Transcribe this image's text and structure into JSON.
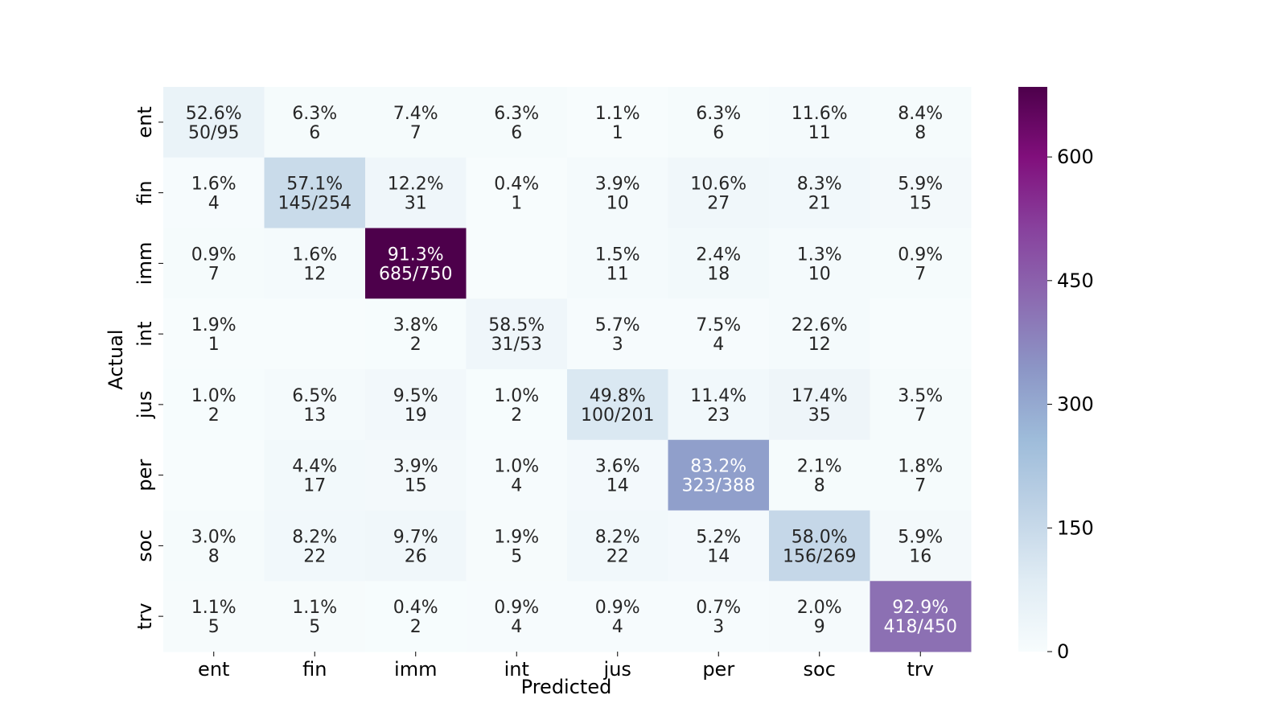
{
  "chart_data": {
    "type": "heatmap",
    "title": "",
    "xlabel": "Predicted",
    "ylabel": "Actual",
    "x_categories": [
      "ent",
      "fin",
      "imm",
      "int",
      "jus",
      "per",
      "soc",
      "trv"
    ],
    "y_categories": [
      "ent",
      "fin",
      "imm",
      "int",
      "jus",
      "per",
      "soc",
      "trv"
    ],
    "colormap": "BuPu",
    "color_range": [
      0,
      685
    ],
    "colorbar_ticks": [
      0,
      150,
      300,
      450,
      600
    ],
    "values": [
      [
        50,
        6,
        7,
        6,
        1,
        6,
        11,
        8
      ],
      [
        4,
        145,
        31,
        1,
        10,
        27,
        21,
        15
      ],
      [
        7,
        12,
        685,
        0,
        11,
        18,
        10,
        7
      ],
      [
        1,
        0,
        2,
        31,
        3,
        4,
        12,
        0
      ],
      [
        2,
        13,
        19,
        2,
        100,
        23,
        35,
        7
      ],
      [
        0,
        17,
        15,
        4,
        14,
        323,
        8,
        7
      ],
      [
        8,
        22,
        26,
        5,
        22,
        14,
        156,
        16
      ],
      [
        5,
        5,
        2,
        4,
        4,
        3,
        9,
        418
      ]
    ],
    "annotations": [
      [
        [
          "52.6%",
          "50/95"
        ],
        [
          "6.3%",
          "6"
        ],
        [
          "7.4%",
          "7"
        ],
        [
          "6.3%",
          "6"
        ],
        [
          "1.1%",
          "1"
        ],
        [
          "6.3%",
          "6"
        ],
        [
          "11.6%",
          "11"
        ],
        [
          "8.4%",
          "8"
        ]
      ],
      [
        [
          "1.6%",
          "4"
        ],
        [
          "57.1%",
          "145/254"
        ],
        [
          "12.2%",
          "31"
        ],
        [
          "0.4%",
          "1"
        ],
        [
          "3.9%",
          "10"
        ],
        [
          "10.6%",
          "27"
        ],
        [
          "8.3%",
          "21"
        ],
        [
          "5.9%",
          "15"
        ]
      ],
      [
        [
          "0.9%",
          "7"
        ],
        [
          "1.6%",
          "12"
        ],
        [
          "91.3%",
          "685/750"
        ],
        [
          "",
          ""
        ],
        [
          "1.5%",
          "11"
        ],
        [
          "2.4%",
          "18"
        ],
        [
          "1.3%",
          "10"
        ],
        [
          "0.9%",
          "7"
        ]
      ],
      [
        [
          "1.9%",
          "1"
        ],
        [
          "",
          ""
        ],
        [
          "3.8%",
          "2"
        ],
        [
          "58.5%",
          "31/53"
        ],
        [
          "5.7%",
          "3"
        ],
        [
          "7.5%",
          "4"
        ],
        [
          "22.6%",
          "12"
        ],
        [
          "",
          ""
        ]
      ],
      [
        [
          "1.0%",
          "2"
        ],
        [
          "6.5%",
          "13"
        ],
        [
          "9.5%",
          "19"
        ],
        [
          "1.0%",
          "2"
        ],
        [
          "49.8%",
          "100/201"
        ],
        [
          "11.4%",
          "23"
        ],
        [
          "17.4%",
          "35"
        ],
        [
          "3.5%",
          "7"
        ]
      ],
      [
        [
          "",
          ""
        ],
        [
          "4.4%",
          "17"
        ],
        [
          "3.9%",
          "15"
        ],
        [
          "1.0%",
          "4"
        ],
        [
          "3.6%",
          "14"
        ],
        [
          "83.2%",
          "323/388"
        ],
        [
          "2.1%",
          "8"
        ],
        [
          "1.8%",
          "7"
        ]
      ],
      [
        [
          "3.0%",
          "8"
        ],
        [
          "8.2%",
          "22"
        ],
        [
          "9.7%",
          "26"
        ],
        [
          "1.9%",
          "5"
        ],
        [
          "8.2%",
          "22"
        ],
        [
          "5.2%",
          "14"
        ],
        [
          "58.0%",
          "156/269"
        ],
        [
          "5.9%",
          "16"
        ]
      ],
      [
        [
          "1.1%",
          "5"
        ],
        [
          "1.1%",
          "5"
        ],
        [
          "0.4%",
          "2"
        ],
        [
          "0.9%",
          "4"
        ],
        [
          "0.9%",
          "4"
        ],
        [
          "0.7%",
          "3"
        ],
        [
          "2.0%",
          "9"
        ],
        [
          "92.9%",
          "418/450"
        ]
      ]
    ],
    "grid": false,
    "legend": "none"
  }
}
